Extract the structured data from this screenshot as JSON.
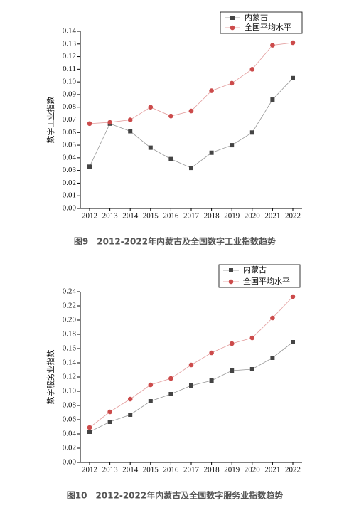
{
  "chart_data": [
    {
      "type": "line",
      "caption": "图9　2012-2022年内蒙古及全国数字工业指数趋势",
      "y_label": "数字工业指数",
      "categories": [
        "2012",
        "2013",
        "2014",
        "2015",
        "2016",
        "2017",
        "2018",
        "2019",
        "2020",
        "2021",
        "2022"
      ],
      "series": [
        {
          "name": "内蒙古",
          "color": "#444444",
          "marker": "square",
          "values": [
            0.033,
            0.067,
            0.061,
            0.048,
            0.039,
            0.032,
            0.044,
            0.05,
            0.06,
            0.086,
            0.103
          ]
        },
        {
          "name": "全国平均水平",
          "color": "#cc4b4b",
          "marker": "circle",
          "values": [
            0.067,
            0.068,
            0.07,
            0.08,
            0.073,
            0.077,
            0.093,
            0.099,
            0.11,
            0.129,
            0.131
          ]
        }
      ],
      "ylim": [
        0,
        0.14
      ],
      "yticks": [
        {
          "value": 0,
          "label": "0.00"
        },
        0.01,
        0.02,
        0.03,
        0.04,
        0.05,
        0.06,
        0.07,
        0.08,
        0.09,
        {
          "value": 0.1,
          "label": "0.10"
        },
        0.11,
        0.12,
        0.13,
        0.14
      ],
      "legend": "upper right"
    },
    {
      "type": "line",
      "caption": "图10　2012-2022年内蒙古及全国数字服务业指数趋势",
      "y_label": "数字服务业指数",
      "categories": [
        "2012",
        "2013",
        "2014",
        "2015",
        "2016",
        "2017",
        "2018",
        "2019",
        "2020",
        "2021",
        "2022"
      ],
      "series": [
        {
          "name": "内蒙古",
          "color": "#444444",
          "marker": "square",
          "values": [
            0.043,
            0.057,
            0.067,
            0.086,
            0.096,
            0.108,
            0.115,
            0.129,
            0.131,
            0.147,
            0.169
          ]
        },
        {
          "name": "全国平均水平",
          "color": "#cc4b4b",
          "marker": "circle",
          "values": [
            0.049,
            0.071,
            0.089,
            0.109,
            0.118,
            0.137,
            0.154,
            0.167,
            0.175,
            0.203,
            0.233
          ]
        }
      ],
      "ylim": [
        0,
        0.24
      ],
      "yticks": [
        {
          "value": 0,
          "label": "0.00"
        },
        0.02,
        0.04,
        0.06,
        0.08,
        {
          "value": 0.1,
          "label": "0.10"
        },
        0.12,
        0.14,
        0.16,
        0.18,
        {
          "value": 0.2,
          "label": "0.20"
        },
        0.22,
        0.24
      ],
      "legend": "upper right"
    }
  ]
}
